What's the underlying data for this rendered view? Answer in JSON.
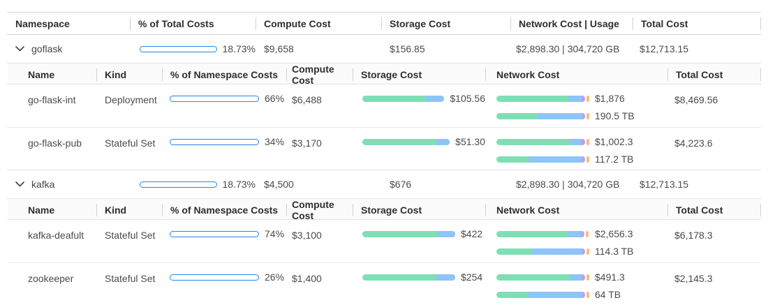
{
  "colors": {
    "accent": "#2187ea",
    "green": "#7fdfb4",
    "blue": "#8ec4f7",
    "purple": "#b9a1ee",
    "orange": "#f2c07d"
  },
  "outer_header": {
    "namespace": "Namespace",
    "pct_total": "% of Total Costs",
    "compute": "Compute Cost",
    "storage": "Storage Cost",
    "network": "Network Cost | Usage",
    "total": "Total Cost"
  },
  "nested_header": {
    "name": "Name",
    "kind": "Kind",
    "pct_ns": "% of Namespace Costs",
    "compute": "Compute Cost",
    "storage": "Storage Cost",
    "network": "Network Cost",
    "total": "Total Cost"
  },
  "groups": [
    {
      "name": "goflask",
      "pct_label": "18.73%",
      "pct_fill": 50,
      "compute": "$9,658",
      "storage": "$156.85",
      "network": "$2,898.30 | 304,720 GB",
      "total": "$12,713.15",
      "workloads": [
        {
          "name": "go-flask-int",
          "kind": "Deployment",
          "pct_label": "66%",
          "pct_fill": 63,
          "compute": "$6,488",
          "storage_value": "$105.56",
          "storage_segments": [
            {
              "color": "green",
              "pct": 77
            },
            {
              "color": "blue",
              "pct": 23
            }
          ],
          "net_cost_value": "$1,876",
          "net_cost_segments": [
            {
              "color": "green",
              "pct": 78
            },
            {
              "color": "blue",
              "pct": 14
            },
            {
              "color": "purple",
              "pct": 4
            },
            {
              "color": "orange",
              "pct": 3,
              "tick": true
            }
          ],
          "net_usage_value": "190.5 TB",
          "net_usage_segments": [
            {
              "color": "green",
              "pct": 45
            },
            {
              "color": "blue",
              "pct": 49
            },
            {
              "color": "purple",
              "pct": 3
            },
            {
              "color": "orange",
              "pct": 3,
              "tick": true
            }
          ],
          "total": "$8,469.56"
        },
        {
          "name": "go-flask-pub",
          "kind": "Stateful Set",
          "pct_label": "34%",
          "pct_fill": 37,
          "compute": "$3,170",
          "storage_value": "$51.30",
          "storage_segments": [
            {
              "color": "green",
              "pct": 84
            },
            {
              "color": "blue",
              "pct": 16
            }
          ],
          "net_cost_value": "$1,002.3",
          "net_cost_segments": [
            {
              "color": "green",
              "pct": 80
            },
            {
              "color": "blue",
              "pct": 12
            },
            {
              "color": "purple",
              "pct": 4
            },
            {
              "color": "orange",
              "pct": 3,
              "tick": true
            }
          ],
          "net_usage_value": "117.2 TB",
          "net_usage_segments": [
            {
              "color": "green",
              "pct": 35
            },
            {
              "color": "blue",
              "pct": 59
            },
            {
              "color": "purple",
              "pct": 3
            },
            {
              "color": "orange",
              "pct": 3,
              "tick": true
            }
          ],
          "total": "$4,223.6"
        }
      ]
    },
    {
      "name": "kafka",
      "pct_label": "18.73%",
      "pct_fill": 50,
      "compute": "$4,500",
      "storage": "$676",
      "network": "$2,898.30 | 304,720 GB",
      "total": "$12,713.15",
      "workloads": [
        {
          "name": "kafka-deafult",
          "kind": "Stateful Set",
          "pct_label": "74%",
          "pct_fill": 73,
          "compute": "$3,100",
          "storage_value": "$422",
          "storage_segments": [
            {
              "color": "green",
              "pct": 81
            },
            {
              "color": "blue",
              "pct": 19
            }
          ],
          "net_cost_value": "$2,656.3",
          "net_cost_segments": [
            {
              "color": "green",
              "pct": 77
            },
            {
              "color": "blue",
              "pct": 14
            },
            {
              "color": "purple",
              "pct": 4
            },
            {
              "color": "orange",
              "pct": 3,
              "tick": true
            }
          ],
          "net_usage_value": "114.3 TB",
          "net_usage_segments": [
            {
              "color": "green",
              "pct": 39
            },
            {
              "color": "blue",
              "pct": 55
            },
            {
              "color": "purple",
              "pct": 3
            },
            {
              "color": "orange",
              "pct": 3,
              "tick": true
            }
          ],
          "total": "$6,178.3"
        },
        {
          "name": "zookeeper",
          "kind": "Stateful Set",
          "pct_label": "26%",
          "pct_fill": 28,
          "compute": "$1,400",
          "storage_value": "$254",
          "storage_segments": [
            {
              "color": "green",
              "pct": 80
            },
            {
              "color": "blue",
              "pct": 20
            }
          ],
          "net_cost_value": "$491.3",
          "net_cost_segments": [
            {
              "color": "green",
              "pct": 80
            },
            {
              "color": "blue",
              "pct": 12
            },
            {
              "color": "purple",
              "pct": 4
            },
            {
              "color": "orange",
              "pct": 3,
              "tick": true
            }
          ],
          "net_usage_value": "64 TB",
          "net_usage_segments": [
            {
              "color": "green",
              "pct": 35
            },
            {
              "color": "blue",
              "pct": 59
            },
            {
              "color": "purple",
              "pct": 3
            },
            {
              "color": "orange",
              "pct": 3,
              "tick": true
            }
          ],
          "total": "$2,145.3"
        }
      ]
    }
  ]
}
